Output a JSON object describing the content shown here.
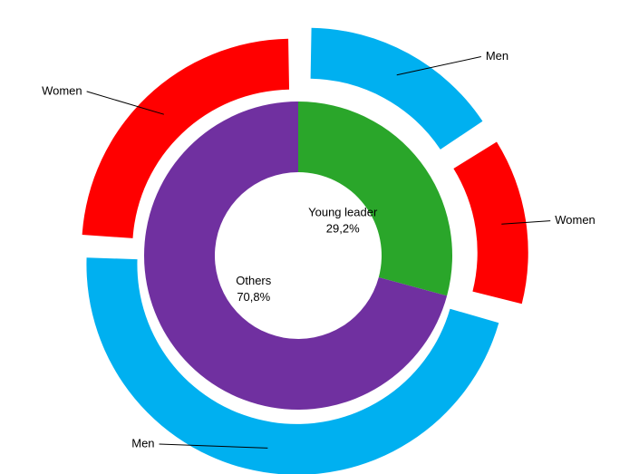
{
  "chart_data": {
    "type": "sunburst",
    "categories": [
      "Young leader",
      "Others"
    ],
    "values": [
      29.2,
      70.8
    ],
    "value_labels": [
      "29,2%",
      "70,8%"
    ],
    "colors": [
      "#2aa62a",
      "#7030a0"
    ],
    "children": [
      {
        "categories": [
          "Men",
          "Women"
        ],
        "values": [
          15.9,
          13.3
        ],
        "colors": [
          "#00b0f0",
          "#ff0000"
        ]
      },
      {
        "categories": [
          "Men",
          "Women"
        ],
        "values": [
          46.6,
          24.2
        ],
        "colors": [
          "#00b0f0",
          "#ff0000"
        ]
      }
    ]
  }
}
